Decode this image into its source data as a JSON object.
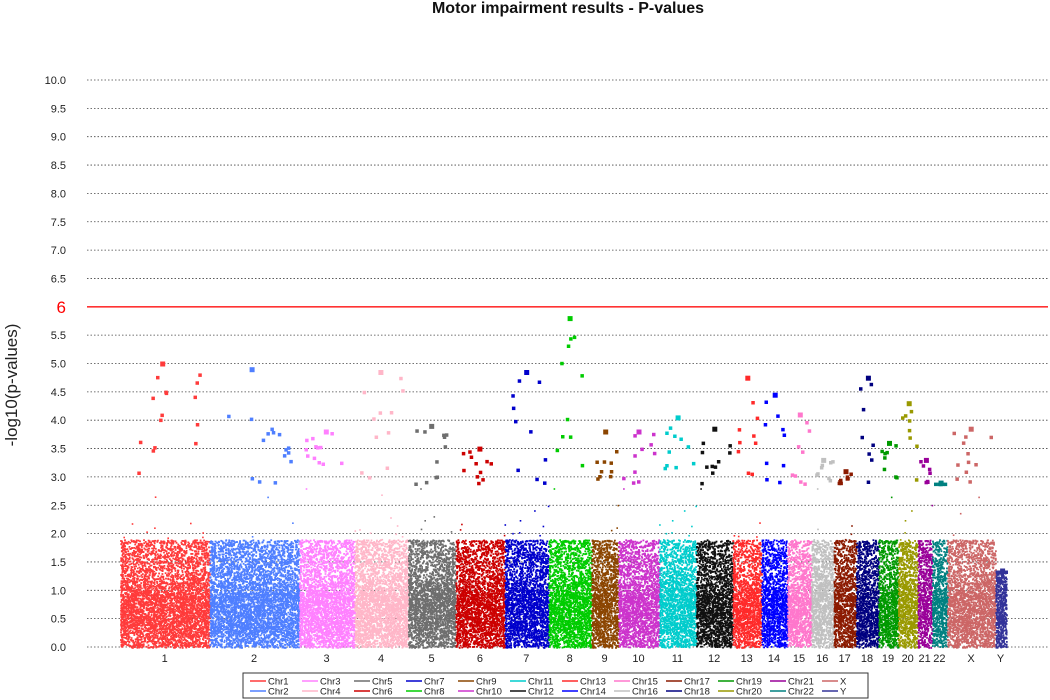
{
  "chart_data": {
    "type": "scatter",
    "title": "Motor impairment results - P-values",
    "xlabel": "",
    "ylabel": "-log10(p-values)",
    "ylim": [
      0,
      10
    ],
    "y_ticks": [
      "0.0",
      "0.5",
      "1.0",
      "1.5",
      "2.0",
      "2.5",
      "3.0",
      "3.5",
      "4.0",
      "4.5",
      "5.0",
      "5.5",
      "6",
      "6.5",
      "7.0",
      "7.5",
      "8.0",
      "8.5",
      "9.0",
      "9.5",
      "10.0"
    ],
    "grid": "dotted-horizontal",
    "threshold": {
      "value": 6,
      "label": "6",
      "color": "#ff3333"
    },
    "legend_position": "bottom",
    "chromosomes": [
      {
        "label": "1",
        "series": "Chr1",
        "color": "#ff3b3b",
        "max": 5.0
      },
      {
        "label": "2",
        "series": "Chr2",
        "color": "#4f7fff",
        "max": 4.9
      },
      {
        "label": "3",
        "series": "Chr3",
        "color": "#ff80ff",
        "max": 3.8
      },
      {
        "label": "4",
        "series": "Chr4",
        "color": "#ffb6c8",
        "max": 4.85
      },
      {
        "label": "5",
        "series": "Chr5",
        "color": "#6e6e6e",
        "max": 3.9
      },
      {
        "label": "6",
        "series": "Chr6",
        "color": "#cc0000",
        "max": 3.5
      },
      {
        "label": "7",
        "series": "Chr7",
        "color": "#0000cc",
        "max": 4.85
      },
      {
        "label": "8",
        "series": "Chr8",
        "color": "#00cc00",
        "max": 5.8
      },
      {
        "label": "9",
        "series": "Chr9",
        "color": "#8b4500",
        "max": 3.8
      },
      {
        "label": "10",
        "series": "Chr10",
        "color": "#cc33cc",
        "max": 3.8
      },
      {
        "label": "11",
        "series": "Chr11",
        "color": "#00cccc",
        "max": 4.05
      },
      {
        "label": "12",
        "series": "Chr12",
        "color": "#111111",
        "max": 3.85
      },
      {
        "label": "13",
        "series": "Chr13",
        "color": "#ff2a2a",
        "max": 4.75
      },
      {
        "label": "14",
        "series": "Chr14",
        "color": "#0000ff",
        "max": 4.45
      },
      {
        "label": "15",
        "series": "Chr15",
        "color": "#ff77cc",
        "max": 4.1
      },
      {
        "label": "16",
        "series": "Chr16",
        "color": "#c0c0c0",
        "max": 3.3
      },
      {
        "label": "17",
        "series": "Chr17",
        "color": "#8b1a00",
        "max": 3.1
      },
      {
        "label": "18",
        "series": "Chr18",
        "color": "#000080",
        "max": 4.75
      },
      {
        "label": "19",
        "series": "Chr19",
        "color": "#009900",
        "max": 3.6
      },
      {
        "label": "20",
        "series": "Chr20",
        "color": "#999900",
        "max": 4.3
      },
      {
        "label": "21",
        "series": "Chr21",
        "color": "#990099",
        "max": 3.3
      },
      {
        "label": "22",
        "series": "Chr22",
        "color": "#008080",
        "max": 2.9
      },
      {
        "label": "X",
        "series": "X",
        "color": "#cc6666",
        "max": 3.85
      },
      {
        "label": "Y",
        "series": "Y",
        "color": "#333399",
        "max": 1.35
      }
    ],
    "legend": [
      [
        "Chr1",
        "Chr3",
        "Chr5",
        "Chr7",
        "Chr9",
        "Chr11",
        "Chr13",
        "Chr15",
        "Chr17",
        "Chr19",
        "Chr21",
        "X"
      ],
      [
        "Chr2",
        "Chr4",
        "Chr6",
        "Chr8",
        "Chr10",
        "Chr12",
        "Chr14",
        "Chr16",
        "Chr18",
        "Chr20",
        "Chr22",
        "Y"
      ]
    ]
  }
}
